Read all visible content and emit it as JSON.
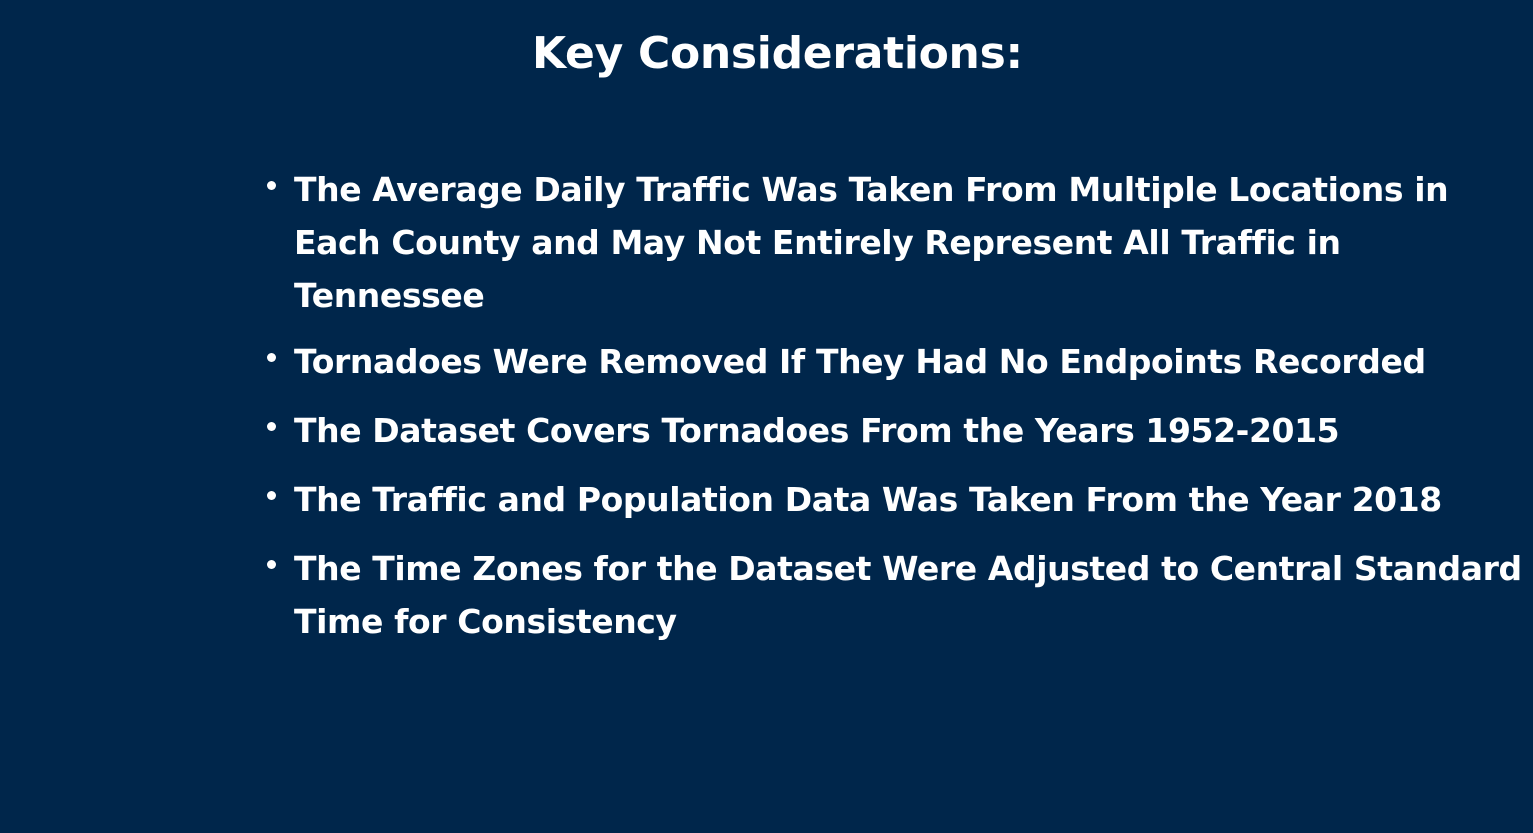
{
  "slide": {
    "title": "Key Considerations:",
    "bullets": [
      {
        "lines": [
          "The Average Daily Traffic Was Taken From Multiple Locations in",
          "Each County and May Not Entirely Represent All Traffic in",
          "Tennessee"
        ]
      },
      {
        "lines": [
          "Tornadoes Were Removed If They Had No Endpoints Recorded"
        ]
      },
      {
        "lines": [
          "The Dataset Covers Tornadoes From the Years 1952-2015"
        ]
      },
      {
        "lines": [
          "The Traffic and Population Data Was Taken From the Year 2018"
        ]
      },
      {
        "lines": [
          "The Time Zones for the Dataset Were Adjusted to Central Standard",
          "Time for Consistency"
        ]
      }
    ]
  },
  "colors": {
    "background": "#00264b",
    "text": "#ffffff"
  }
}
